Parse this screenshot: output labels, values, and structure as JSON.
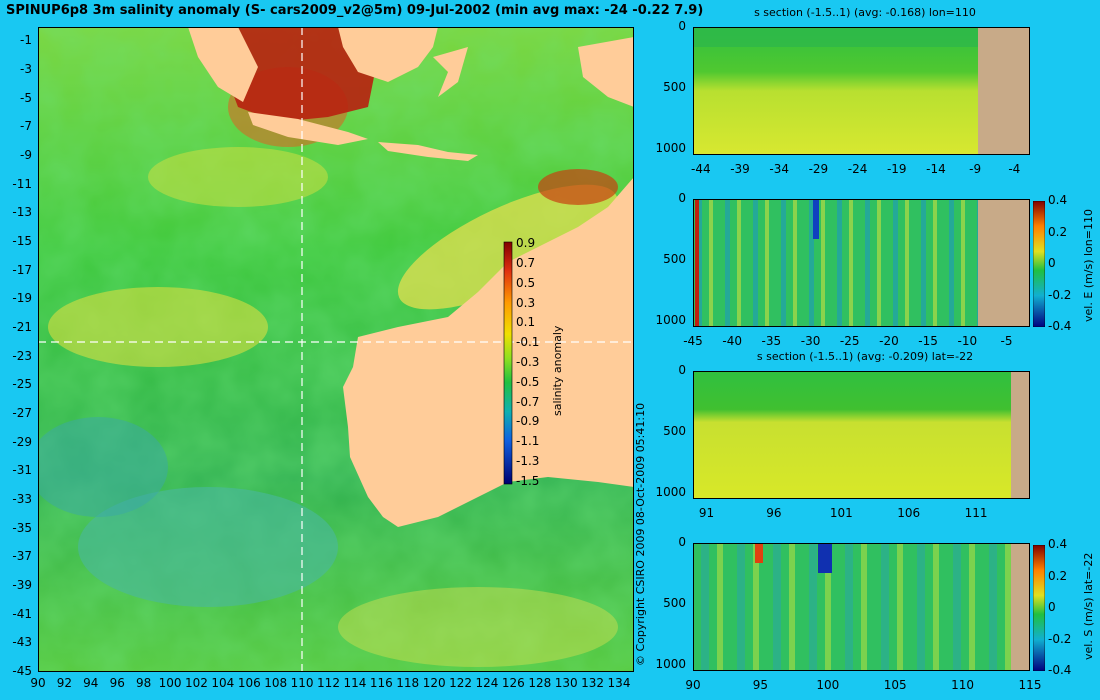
{
  "map": {
    "title": "SPINUP6p8 3m salinity anomaly (S- cars2009_v2@5m) 09-Jul-2002 (min avg max: -24 -0.22 7.9)",
    "x_ticks": [
      "90",
      "92",
      "94",
      "96",
      "98",
      "100",
      "102",
      "104",
      "106",
      "108",
      "110",
      "112",
      "114",
      "116",
      "118",
      "120",
      "122",
      "124",
      "126",
      "128",
      "130",
      "132",
      "134"
    ],
    "y_ticks": [
      "-1",
      "-3",
      "-5",
      "-7",
      "-9",
      "-11",
      "-13",
      "-15",
      "-17",
      "-19",
      "-21",
      "-23",
      "-25",
      "-27",
      "-29",
      "-31",
      "-33",
      "-35",
      "-37",
      "-39",
      "-41",
      "-43",
      "-45"
    ],
    "colorbar": {
      "label": "salinity anomaly",
      "ticks": [
        "0.9",
        "0.7",
        "0.5",
        "0.3",
        "0.1",
        "-0.1",
        "-0.3",
        "-0.5",
        "-0.7",
        "-0.9",
        "-1.1",
        "-1.3",
        "-1.5"
      ]
    },
    "copyright": "© Copyright CSIRO 2009   08-Oct-2009 05:41:10",
    "section_lon": 110,
    "section_lat": -22,
    "colors": {
      "land": "#ffcc99",
      "background": "#19c8f2",
      "section_land": "#c8aa88"
    }
  },
  "chart_data": [
    {
      "type": "heatmap",
      "title": "SPINUP6p8 3m salinity anomaly (S- cars2009_v2@5m) 09-Jul-2002 (min avg max: -24 -0.22 7.9)",
      "x_range": [
        90,
        135
      ],
      "y_range": [
        -45,
        0
      ],
      "colorbar_range": [
        -1.5,
        1.0
      ],
      "stats": {
        "min": -24,
        "avg": -0.22,
        "max": 7.9
      }
    },
    {
      "type": "heatmap",
      "title": "s section (-1.5..1) (avg: -0.168) lon=110",
      "x_ticks": [
        "-44",
        "-39",
        "-34",
        "-29",
        "-24",
        "-19",
        "-14",
        "-9",
        "-4"
      ],
      "y_ticks": [
        "0",
        "500",
        "1000"
      ],
      "x_range": [
        -45,
        -2
      ],
      "y_range": [
        0,
        1050
      ]
    },
    {
      "type": "heatmap",
      "ylabel": "vel. E (m/s) lon=110",
      "x_ticks": [
        "-45",
        "-40",
        "-35",
        "-30",
        "-25",
        "-20",
        "-15",
        "-10",
        "-5"
      ],
      "y_ticks": [
        "0",
        "500",
        "1000"
      ],
      "colorbar_ticks": [
        "0.4",
        "0.2",
        "0",
        "-0.2",
        "-0.4"
      ],
      "x_range": [
        -45,
        -2
      ],
      "y_range": [
        0,
        1050
      ]
    },
    {
      "type": "heatmap",
      "title": "s section (-1.5..1) (avg: -0.209) lat=-22",
      "x_ticks": [
        "91",
        "96",
        "101",
        "106",
        "111"
      ],
      "y_ticks": [
        "0",
        "500",
        "1000"
      ],
      "x_range": [
        90,
        115
      ],
      "y_range": [
        0,
        1050
      ]
    },
    {
      "type": "heatmap",
      "ylabel": "vel. S (m/s) lat=-22",
      "x_ticks": [
        "90",
        "95",
        "100",
        "105",
        "110",
        "115"
      ],
      "y_ticks": [
        "0",
        "500",
        "1000"
      ],
      "colorbar_ticks": [
        "0.4",
        "0.2",
        "0",
        "-0.2",
        "-0.4"
      ],
      "x_range": [
        90,
        115
      ],
      "y_range": [
        0,
        1050
      ]
    }
  ]
}
